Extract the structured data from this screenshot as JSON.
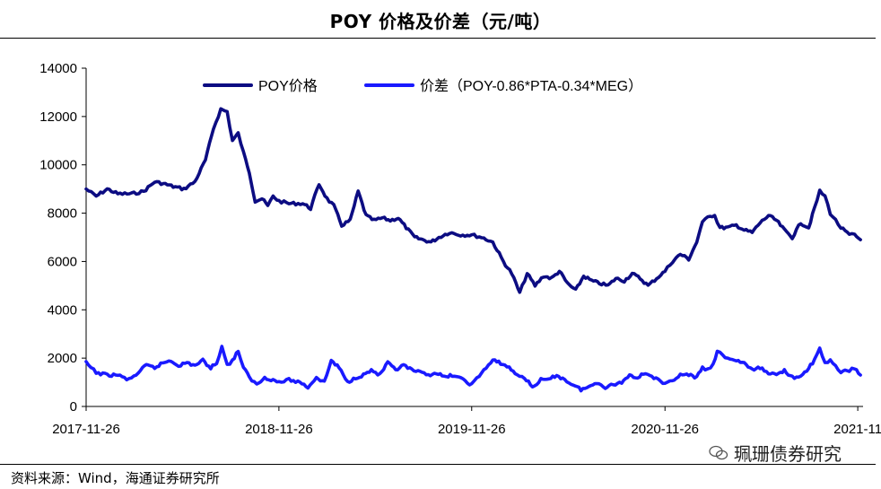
{
  "title": "POY 价格及价差（元/吨）",
  "source": "资料来源：Wind，海通证券研究所",
  "watermark": "珮珊债券研究",
  "colors": {
    "poy": "#0c0c82",
    "spread": "#1a1aff",
    "axis": "#000000"
  },
  "chart_data": {
    "type": "line",
    "ylim": [
      0,
      14000
    ],
    "yticks": [
      "0",
      "2000",
      "4000",
      "6000",
      "8000",
      "10000",
      "12000",
      "14000"
    ],
    "xticks": [
      "2017-11-26",
      "2018-11-26",
      "2019-11-26",
      "2020-11-26",
      "2021-11"
    ],
    "xlim": [
      "2017-11-26",
      "2021-12-06"
    ],
    "legend_position": "top",
    "grid": false,
    "series": [
      {
        "name": "POY价格",
        "color": "#0c0c82",
        "points": [
          [
            "2017-11-26",
            9000
          ],
          [
            "2017-12-15",
            8700
          ],
          [
            "2018-01-05",
            9000
          ],
          [
            "2018-01-25",
            8800
          ],
          [
            "2018-02-20",
            8800
          ],
          [
            "2018-03-15",
            8900
          ],
          [
            "2018-04-05",
            9300
          ],
          [
            "2018-04-25",
            9200
          ],
          [
            "2018-05-10",
            9100
          ],
          [
            "2018-05-30",
            9000
          ],
          [
            "2018-06-20",
            9300
          ],
          [
            "2018-07-10",
            10200
          ],
          [
            "2018-07-25",
            11500
          ],
          [
            "2018-08-08",
            12300
          ],
          [
            "2018-08-20",
            12200
          ],
          [
            "2018-08-30",
            11000
          ],
          [
            "2018-09-10",
            11300
          ],
          [
            "2018-09-20",
            10500
          ],
          [
            "2018-10-01",
            9700
          ],
          [
            "2018-10-12",
            8500
          ],
          [
            "2018-10-25",
            8600
          ],
          [
            "2018-11-05",
            8300
          ],
          [
            "2018-11-15",
            8700
          ],
          [
            "2018-11-26",
            8500
          ],
          [
            "2018-12-15",
            8400
          ],
          [
            "2019-01-10",
            8400
          ],
          [
            "2019-01-25",
            8200
          ],
          [
            "2019-02-10",
            9200
          ],
          [
            "2019-02-25",
            8600
          ],
          [
            "2019-03-10",
            8300
          ],
          [
            "2019-03-25",
            7500
          ],
          [
            "2019-04-10",
            7700
          ],
          [
            "2019-04-25",
            8900
          ],
          [
            "2019-05-10",
            7900
          ],
          [
            "2019-05-25",
            7700
          ],
          [
            "2019-06-10",
            7800
          ],
          [
            "2019-06-25",
            7700
          ],
          [
            "2019-07-10",
            7800
          ],
          [
            "2019-07-25",
            7400
          ],
          [
            "2019-08-10",
            7000
          ],
          [
            "2019-08-25",
            6900
          ],
          [
            "2019-09-10",
            6800
          ],
          [
            "2019-09-25",
            7000
          ],
          [
            "2019-10-15",
            7200
          ],
          [
            "2019-11-05",
            7100
          ],
          [
            "2019-11-26",
            7100
          ],
          [
            "2019-12-15",
            7000
          ],
          [
            "2020-01-05",
            6800
          ],
          [
            "2020-01-25",
            6000
          ],
          [
            "2020-02-10",
            5500
          ],
          [
            "2020-02-25",
            4700
          ],
          [
            "2020-03-10",
            5500
          ],
          [
            "2020-03-25",
            5000
          ],
          [
            "2020-04-10",
            5400
          ],
          [
            "2020-04-25",
            5300
          ],
          [
            "2020-05-10",
            5600
          ],
          [
            "2020-05-25",
            5100
          ],
          [
            "2020-06-10",
            4800
          ],
          [
            "2020-06-25",
            5400
          ],
          [
            "2020-07-10",
            5200
          ],
          [
            "2020-07-25",
            5100
          ],
          [
            "2020-08-10",
            5000
          ],
          [
            "2020-08-25",
            5300
          ],
          [
            "2020-09-10",
            5200
          ],
          [
            "2020-09-25",
            5500
          ],
          [
            "2020-10-10",
            5300
          ],
          [
            "2020-10-25",
            5000
          ],
          [
            "2020-11-10",
            5300
          ],
          [
            "2020-11-26",
            5600
          ],
          [
            "2020-12-10",
            6000
          ],
          [
            "2020-12-25",
            6300
          ],
          [
            "2021-01-10",
            6100
          ],
          [
            "2021-01-25",
            6800
          ],
          [
            "2021-02-05",
            7600
          ],
          [
            "2021-02-15",
            7900
          ],
          [
            "2021-02-28",
            7900
          ],
          [
            "2021-03-10",
            7400
          ],
          [
            "2021-03-25",
            7400
          ],
          [
            "2021-04-10",
            7500
          ],
          [
            "2021-04-25",
            7300
          ],
          [
            "2021-05-10",
            7200
          ],
          [
            "2021-05-25",
            7600
          ],
          [
            "2021-06-10",
            7900
          ],
          [
            "2021-06-25",
            7700
          ],
          [
            "2021-07-10",
            7300
          ],
          [
            "2021-07-25",
            7000
          ],
          [
            "2021-08-10",
            7600
          ],
          [
            "2021-08-25",
            7400
          ],
          [
            "2021-09-05",
            8200
          ],
          [
            "2021-09-15",
            8900
          ],
          [
            "2021-09-25",
            8700
          ],
          [
            "2021-10-05",
            8000
          ],
          [
            "2021-10-15",
            7700
          ],
          [
            "2021-10-25",
            7400
          ],
          [
            "2021-11-10",
            7100
          ],
          [
            "2021-11-20",
            7100
          ],
          [
            "2021-12-01",
            6900
          ]
        ]
      },
      {
        "name": "价差（POY-0.86*PTA-0.34*MEG）",
        "color": "#1a1aff",
        "points": [
          [
            "2017-11-26",
            1800
          ],
          [
            "2017-12-15",
            1400
          ],
          [
            "2018-01-05",
            1300
          ],
          [
            "2018-01-25",
            1300
          ],
          [
            "2018-02-15",
            1100
          ],
          [
            "2018-03-05",
            1400
          ],
          [
            "2018-03-20",
            1700
          ],
          [
            "2018-04-05",
            1600
          ],
          [
            "2018-04-20",
            1800
          ],
          [
            "2018-05-05",
            1900
          ],
          [
            "2018-05-20",
            1700
          ],
          [
            "2018-06-05",
            1800
          ],
          [
            "2018-06-20",
            1700
          ],
          [
            "2018-07-05",
            1900
          ],
          [
            "2018-07-20",
            1600
          ],
          [
            "2018-07-31",
            1800
          ],
          [
            "2018-08-10",
            2500
          ],
          [
            "2018-08-20",
            1700
          ],
          [
            "2018-08-30",
            1900
          ],
          [
            "2018-09-10",
            2300
          ],
          [
            "2018-09-20",
            1600
          ],
          [
            "2018-10-01",
            1200
          ],
          [
            "2018-10-15",
            900
          ],
          [
            "2018-10-30",
            1200
          ],
          [
            "2018-11-15",
            1100
          ],
          [
            "2018-11-26",
            1000
          ],
          [
            "2018-12-15",
            1100
          ],
          [
            "2019-01-05",
            1000
          ],
          [
            "2019-01-20",
            800
          ],
          [
            "2019-02-05",
            1200
          ],
          [
            "2019-02-20",
            1000
          ],
          [
            "2019-03-05",
            1900
          ],
          [
            "2019-03-20",
            1600
          ],
          [
            "2019-04-05",
            1000
          ],
          [
            "2019-04-20",
            1200
          ],
          [
            "2019-05-05",
            1300
          ],
          [
            "2019-05-20",
            1500
          ],
          [
            "2019-06-05",
            1300
          ],
          [
            "2019-06-20",
            1800
          ],
          [
            "2019-07-05",
            1500
          ],
          [
            "2019-07-20",
            1700
          ],
          [
            "2019-08-05",
            1500
          ],
          [
            "2019-08-20",
            1400
          ],
          [
            "2019-09-05",
            1300
          ],
          [
            "2019-09-20",
            1400
          ],
          [
            "2019-10-05",
            1200
          ],
          [
            "2019-10-20",
            1300
          ],
          [
            "2019-11-10",
            1100
          ],
          [
            "2019-11-26",
            900
          ],
          [
            "2019-12-15",
            1400
          ],
          [
            "2020-01-05",
            1900
          ],
          [
            "2020-01-20",
            1800
          ],
          [
            "2020-02-05",
            1600
          ],
          [
            "2020-02-20",
            1300
          ],
          [
            "2020-03-05",
            1200
          ],
          [
            "2020-03-20",
            800
          ],
          [
            "2020-04-05",
            1100
          ],
          [
            "2020-04-20",
            1100
          ],
          [
            "2020-05-05",
            1300
          ],
          [
            "2020-05-20",
            1100
          ],
          [
            "2020-06-05",
            900
          ],
          [
            "2020-06-20",
            700
          ],
          [
            "2020-07-05",
            800
          ],
          [
            "2020-07-20",
            1000
          ],
          [
            "2020-08-05",
            800
          ],
          [
            "2020-08-20",
            900
          ],
          [
            "2020-09-05",
            1000
          ],
          [
            "2020-09-20",
            1300
          ],
          [
            "2020-10-05",
            1200
          ],
          [
            "2020-10-20",
            1400
          ],
          [
            "2020-11-05",
            1200
          ],
          [
            "2020-11-26",
            900
          ],
          [
            "2020-12-10",
            1100
          ],
          [
            "2020-12-25",
            1300
          ],
          [
            "2021-01-10",
            1300
          ],
          [
            "2021-01-25",
            1200
          ],
          [
            "2021-02-05",
            1600
          ],
          [
            "2021-02-15",
            1500
          ],
          [
            "2021-02-25",
            1700
          ],
          [
            "2021-03-05",
            2300
          ],
          [
            "2021-03-15",
            2100
          ],
          [
            "2021-03-25",
            2000
          ],
          [
            "2021-04-10",
            1900
          ],
          [
            "2021-04-25",
            1800
          ],
          [
            "2021-05-10",
            1500
          ],
          [
            "2021-05-25",
            1600
          ],
          [
            "2021-06-10",
            1400
          ],
          [
            "2021-06-25",
            1300
          ],
          [
            "2021-07-10",
            1500
          ],
          [
            "2021-07-25",
            1200
          ],
          [
            "2021-08-10",
            1200
          ],
          [
            "2021-08-25",
            1600
          ],
          [
            "2021-09-05",
            1900
          ],
          [
            "2021-09-15",
            2400
          ],
          [
            "2021-09-25",
            1800
          ],
          [
            "2021-10-05",
            1900
          ],
          [
            "2021-10-15",
            1700
          ],
          [
            "2021-10-25",
            1400
          ],
          [
            "2021-11-10",
            1500
          ],
          [
            "2021-11-20",
            1600
          ],
          [
            "2021-12-01",
            1300
          ]
        ]
      }
    ]
  }
}
